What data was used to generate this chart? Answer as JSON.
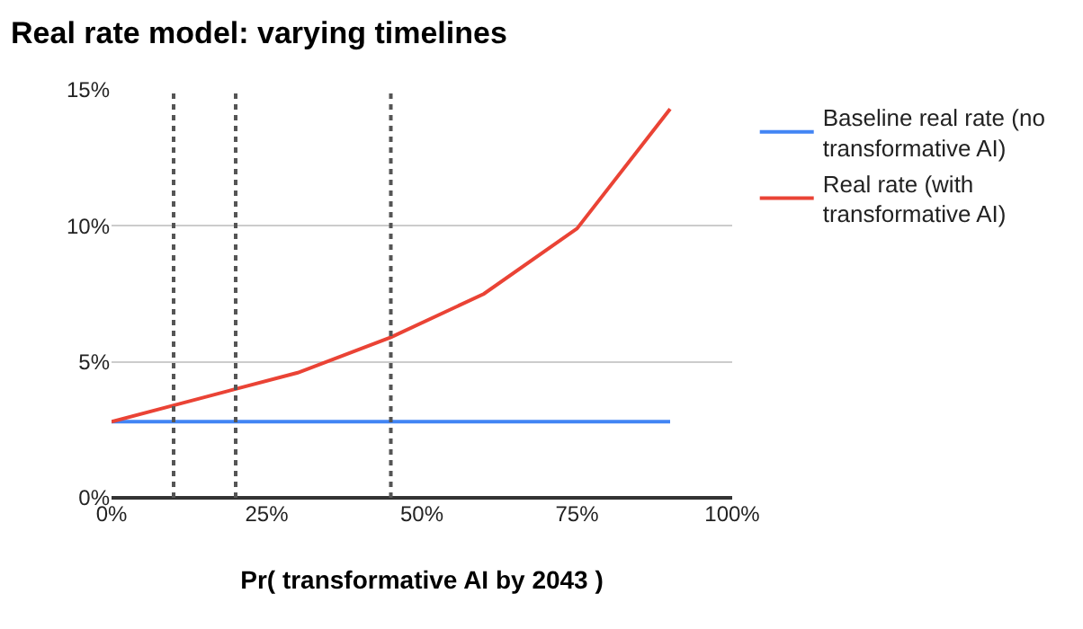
{
  "chart_data": {
    "type": "line",
    "title": "Real rate model: varying timelines",
    "xlabel": "Pr( transformative AI by 2043 )",
    "x": [
      0,
      10,
      20,
      30,
      45,
      60,
      75,
      90
    ],
    "series": [
      {
        "name": "Baseline real rate (no transformative AI)",
        "color": "#4285f4",
        "values": [
          2.8,
          2.8,
          2.8,
          2.8,
          2.8,
          2.8,
          2.8,
          2.8
        ]
      },
      {
        "name": "Real rate (with transformative AI)",
        "color": "#ea4335",
        "values": [
          2.8,
          3.4,
          4.0,
          4.6,
          5.9,
          7.5,
          9.9,
          14.3
        ]
      }
    ],
    "xlim": [
      0,
      100
    ],
    "ylim": [
      0,
      15
    ],
    "xticks": [
      {
        "value": 0,
        "label": "0%"
      },
      {
        "value": 25,
        "label": "25%"
      },
      {
        "value": 50,
        "label": "50%"
      },
      {
        "value": 75,
        "label": "75%"
      },
      {
        "value": 100,
        "label": "100%"
      }
    ],
    "yticks": [
      {
        "value": 0,
        "label": "0%"
      },
      {
        "value": 5,
        "label": "5%"
      },
      {
        "value": 10,
        "label": "10%"
      },
      {
        "value": 15,
        "label": "15%"
      }
    ],
    "ref_lines": [
      {
        "axis": "x",
        "value": 10,
        "label": null,
        "color": "#555555",
        "line_style": "dotted"
      },
      {
        "axis": "x",
        "value": 20,
        "label": null,
        "color": "#555555",
        "line_style": "dotted"
      },
      {
        "axis": "x",
        "value": 45,
        "label": null,
        "color": "#555555",
        "line_style": "dotted"
      }
    ],
    "grid": "y",
    "legend": "right",
    "marker": "none",
    "line_style": "solid"
  }
}
